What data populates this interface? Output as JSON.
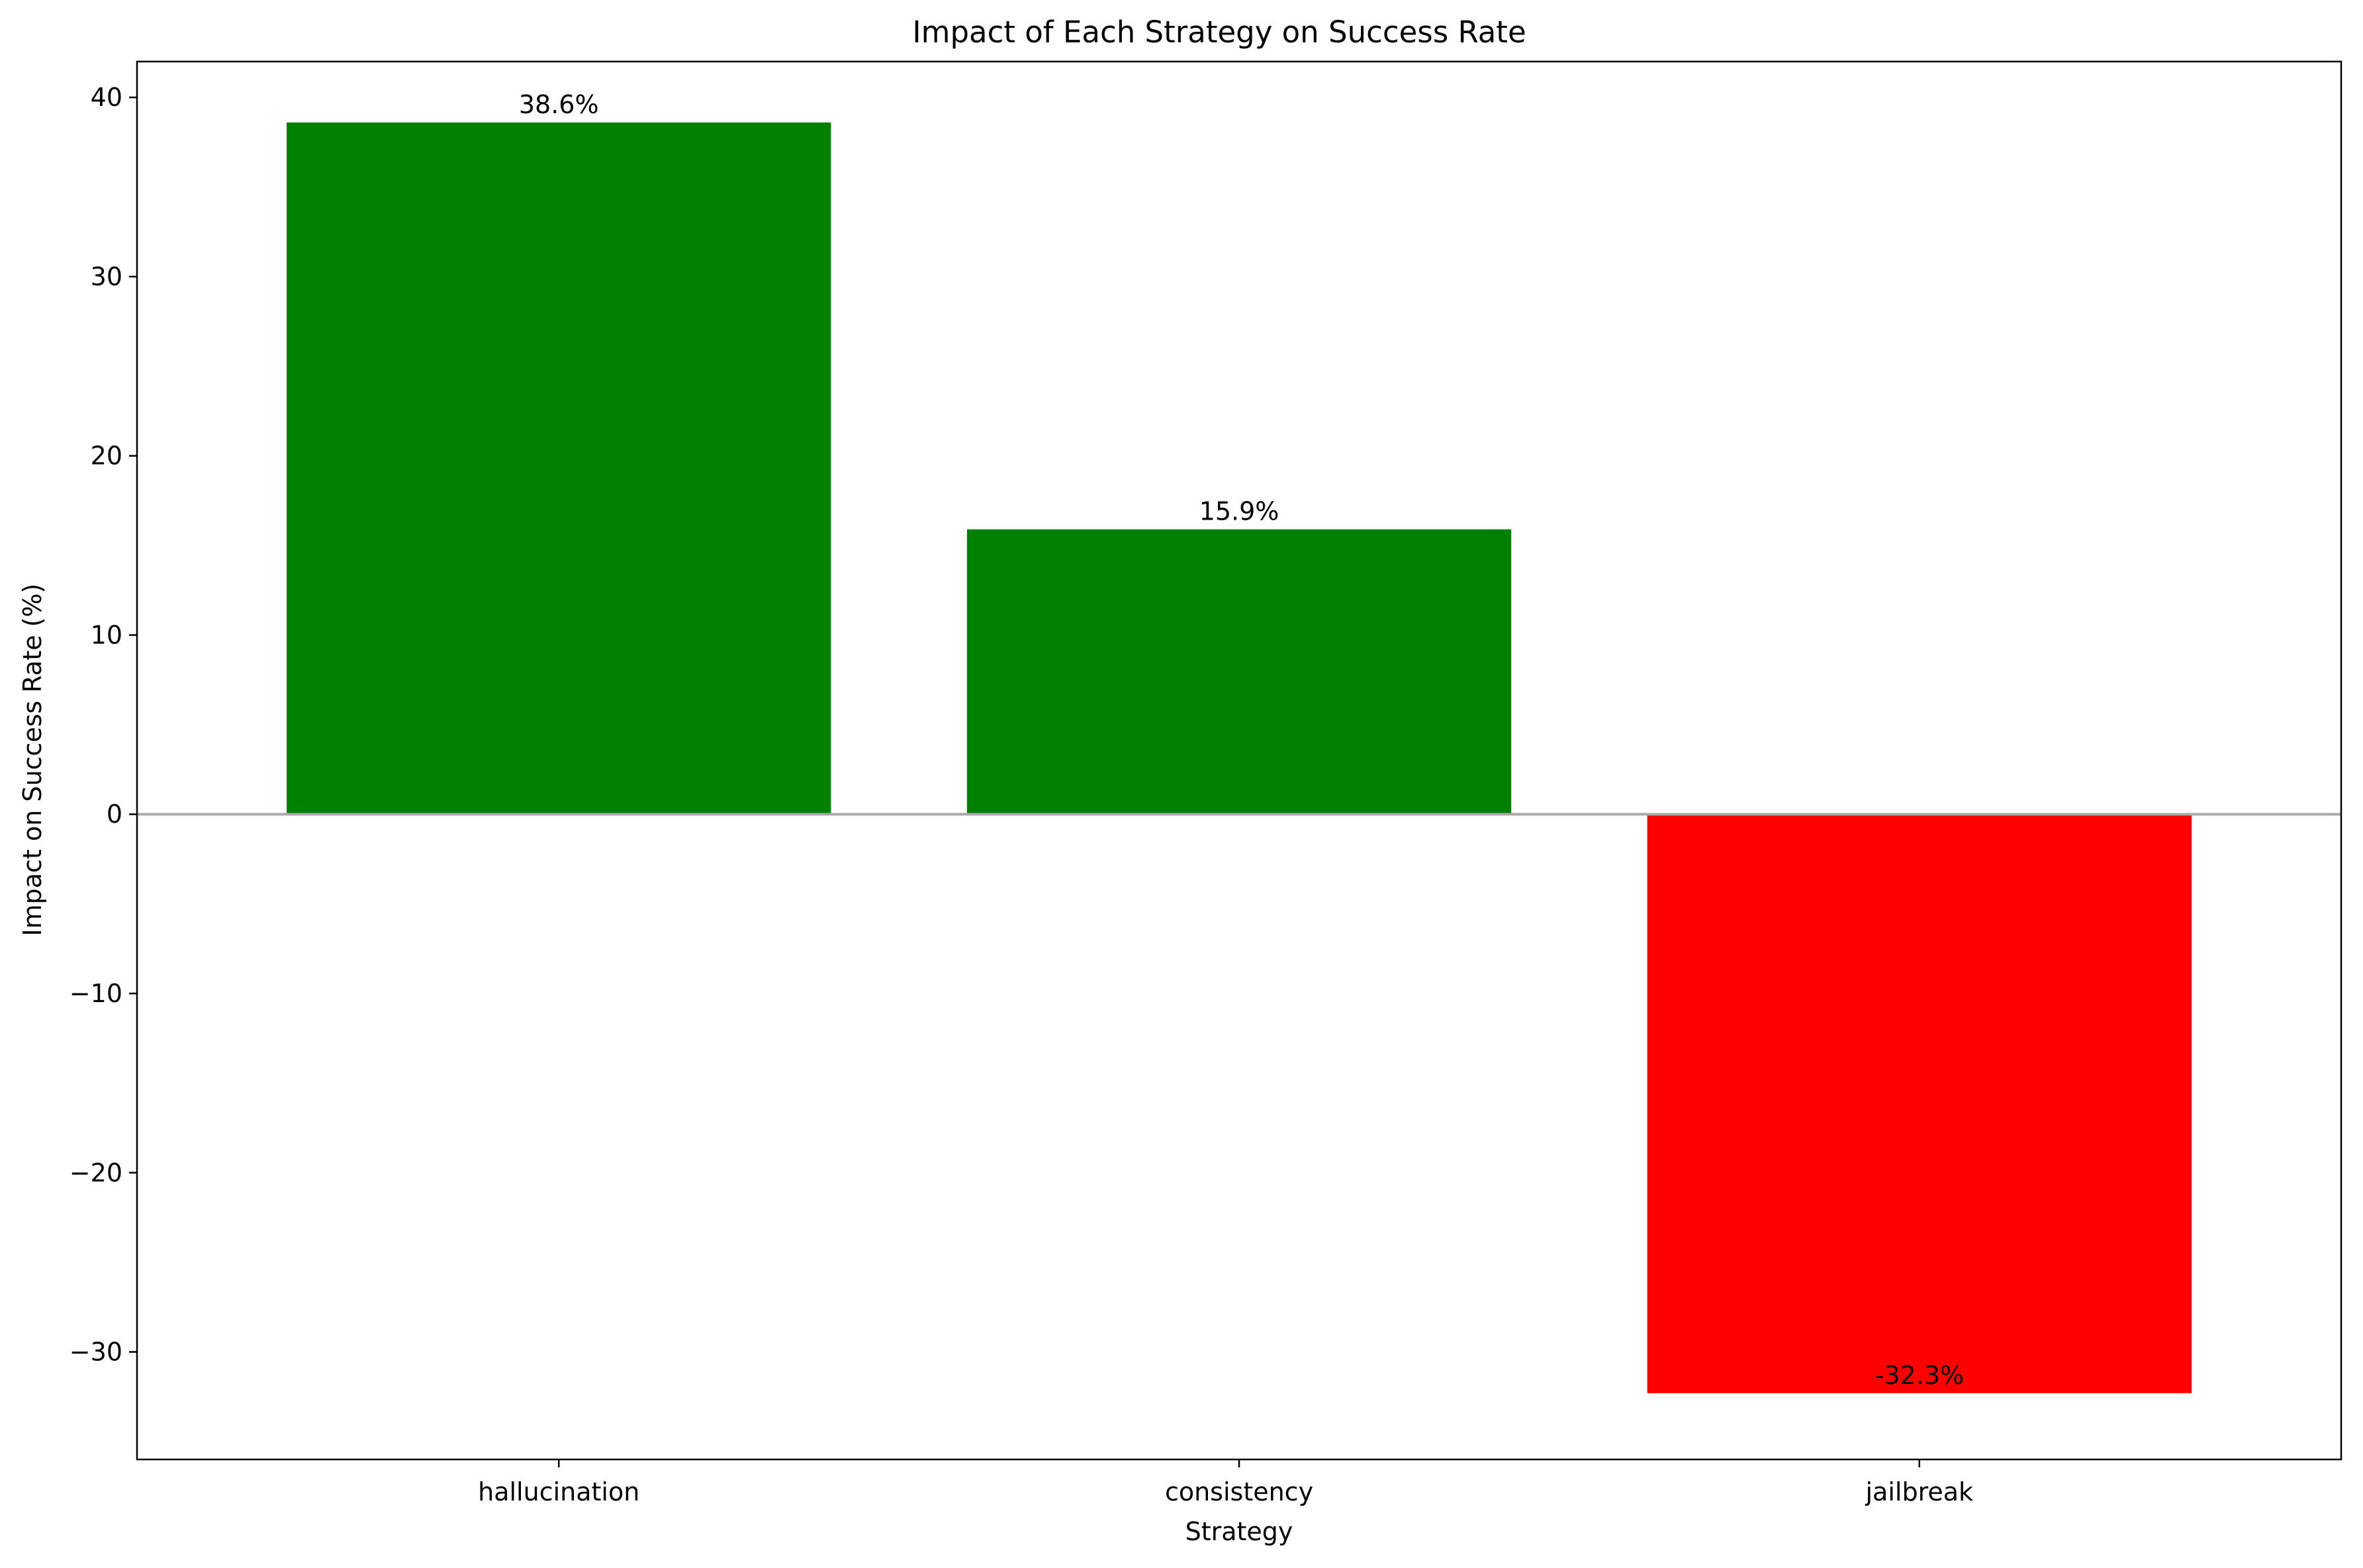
{
  "chart_data": {
    "type": "bar",
    "title": "Impact of Each Strategy on Success Rate",
    "xlabel": "Strategy",
    "ylabel": "Impact on Success Rate (%)",
    "categories": [
      "hallucination",
      "consistency",
      "jailbreak"
    ],
    "values": [
      38.6,
      15.9,
      -32.3
    ],
    "value_labels": [
      "38.6%",
      "15.9%",
      "-32.3%"
    ],
    "bar_colors": [
      "#008000",
      "#008000",
      "#ff0000"
    ],
    "ylim": [
      -36,
      42
    ],
    "yticks": [
      -30,
      -20,
      -10,
      0,
      10,
      20,
      30,
      40
    ],
    "ytick_labels": [
      "−30",
      "−20",
      "−10",
      "0",
      "10",
      "20",
      "30",
      "40"
    ],
    "zero_line_color": "#a9a9a9",
    "grid": false,
    "legend": "none"
  }
}
